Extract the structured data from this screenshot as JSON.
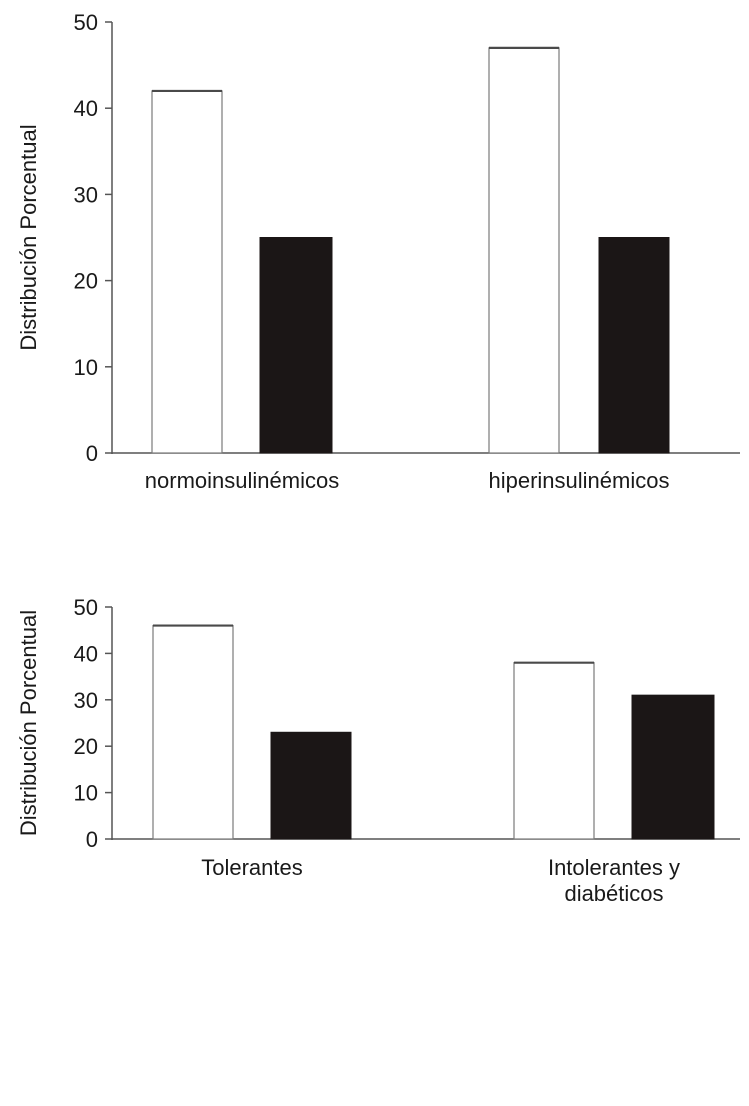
{
  "chart_data": [
    {
      "type": "bar",
      "title": "",
      "xlabel": "",
      "ylabel": "Distribución Porcentual",
      "ylim": [
        0,
        50
      ],
      "yticks": [
        "0",
        "10",
        "20",
        "30",
        "40",
        "50"
      ],
      "categories": [
        [
          "normoinsulinémicos"
        ],
        [
          "hiperinsulinémicos"
        ]
      ],
      "series": [
        {
          "values": [
            42,
            47
          ],
          "fill": "#ffffff",
          "stroke": "#7a7a7a"
        },
        {
          "values": [
            25,
            25
          ],
          "fill": "#1b1616",
          "stroke": "#1b1616"
        }
      ],
      "grid": false,
      "legend": "none"
    },
    {
      "type": "bar",
      "title": "",
      "xlabel": "",
      "ylabel": "Distribución Porcentual",
      "ylim": [
        0,
        50
      ],
      "yticks": [
        "0",
        "10",
        "20",
        "30",
        "40",
        "50"
      ],
      "categories": [
        [
          "Tolerantes"
        ],
        [
          "Intolerantes y",
          "diabéticos"
        ]
      ],
      "series": [
        {
          "values": [
            46,
            38
          ],
          "fill": "#ffffff",
          "stroke": "#7a7a7a"
        },
        {
          "values": [
            23,
            31
          ],
          "fill": "#1b1616",
          "stroke": "#1b1616"
        }
      ],
      "grid": false,
      "legend": "none"
    }
  ]
}
